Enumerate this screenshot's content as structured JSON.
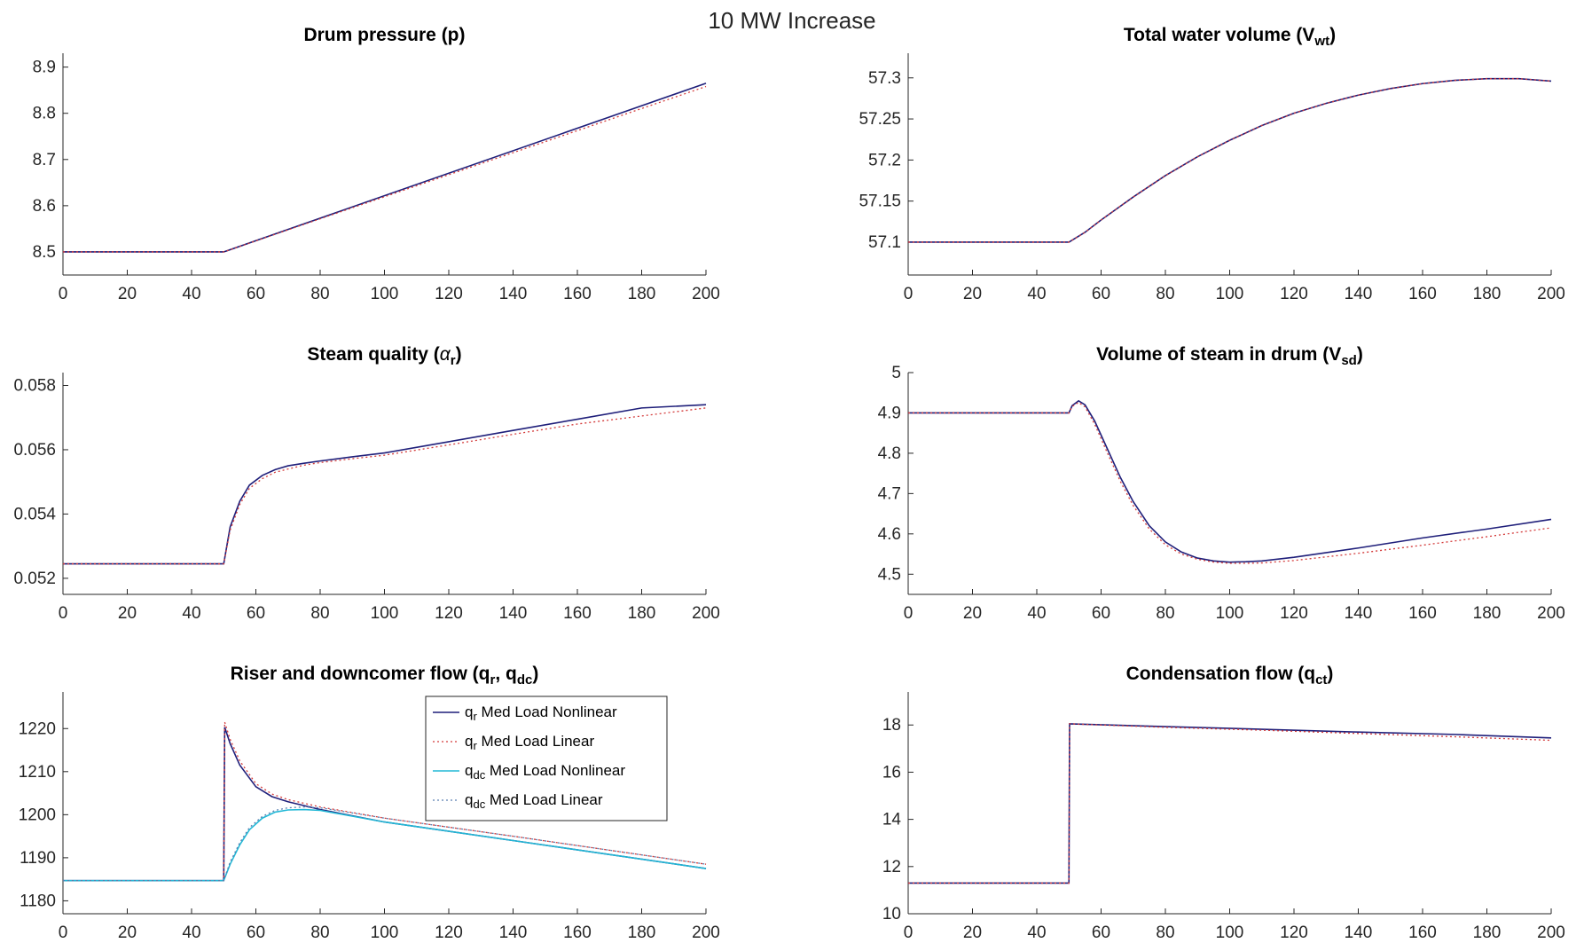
{
  "figure": {
    "super_title": "10 MW Increase"
  },
  "colors": {
    "nonlinear": "#1f1f7a",
    "linear": "#d43b3b",
    "dc_nonlinear": "#22b8d6",
    "dc_linear": "#5a7fb0"
  },
  "chart_data": [
    {
      "type": "line",
      "title": "Drum pressure (p)",
      "title_parts": {
        "main": "Drum pressure (p)",
        "sub": "",
        "end": ""
      },
      "xlim": [
        0,
        200
      ],
      "ylim": [
        8.45,
        8.93
      ],
      "xticks": [
        0,
        20,
        40,
        60,
        80,
        100,
        120,
        140,
        160,
        180,
        200
      ],
      "yticks": [
        8.5,
        8.6,
        8.7,
        8.8,
        8.9
      ],
      "yticklabels": [
        "8.5",
        "8.6",
        "8.7",
        "8.8",
        "8.9"
      ],
      "series": [
        {
          "style": "nonlinear",
          "x": [
            0,
            50,
            200
          ],
          "y": [
            8.5,
            8.5,
            8.865
          ]
        },
        {
          "style": "linear",
          "x": [
            0,
            50,
            200
          ],
          "y": [
            8.5,
            8.5,
            8.858
          ]
        }
      ]
    },
    {
      "type": "line",
      "title": "Total water volume (Vwt)",
      "title_parts": {
        "main": "Total water volume (V",
        "sub": "wt",
        "end": ")"
      },
      "xlim": [
        0,
        200
      ],
      "ylim": [
        57.06,
        57.33
      ],
      "xticks": [
        0,
        20,
        40,
        60,
        80,
        100,
        120,
        140,
        160,
        180,
        200
      ],
      "yticks": [
        57.1,
        57.15,
        57.2,
        57.25,
        57.3
      ],
      "yticklabels": [
        "57.1",
        "57.15",
        "57.2",
        "57.25",
        "57.3"
      ],
      "series": [
        {
          "style": "nonlinear",
          "x": [
            0,
            50,
            55,
            60,
            70,
            80,
            90,
            100,
            110,
            120,
            130,
            140,
            150,
            160,
            170,
            180,
            190,
            200
          ],
          "y": [
            57.1,
            57.1,
            57.112,
            57.127,
            57.155,
            57.181,
            57.204,
            57.224,
            57.242,
            57.257,
            57.269,
            57.279,
            57.287,
            57.293,
            57.297,
            57.299,
            57.299,
            57.296
          ]
        },
        {
          "style": "linear",
          "x": [
            0,
            50,
            55,
            60,
            70,
            80,
            90,
            100,
            110,
            120,
            130,
            140,
            150,
            160,
            170,
            180,
            190,
            200
          ],
          "y": [
            57.1,
            57.1,
            57.112,
            57.127,
            57.155,
            57.181,
            57.204,
            57.224,
            57.242,
            57.257,
            57.269,
            57.279,
            57.287,
            57.293,
            57.297,
            57.299,
            57.299,
            57.296
          ]
        }
      ]
    },
    {
      "type": "line",
      "title": "Steam quality (αr)",
      "title_parts": {
        "main": "Steam quality (",
        "greek": "α",
        "sub": "r",
        "end": ")"
      },
      "xlim": [
        0,
        200
      ],
      "ylim": [
        0.0515,
        0.0584
      ],
      "xticks": [
        0,
        20,
        40,
        60,
        80,
        100,
        120,
        140,
        160,
        180,
        200
      ],
      "yticks": [
        0.052,
        0.054,
        0.056,
        0.058
      ],
      "yticklabels": [
        "0.052",
        "0.054",
        "0.056",
        "0.058"
      ],
      "series": [
        {
          "style": "nonlinear",
          "x": [
            0,
            50,
            52,
            55,
            58,
            62,
            66,
            70,
            75,
            80,
            90,
            100,
            120,
            140,
            160,
            180,
            200
          ],
          "y": [
            0.05245,
            0.05245,
            0.0536,
            0.0544,
            0.0549,
            0.0552,
            0.05538,
            0.0555,
            0.05558,
            0.05565,
            0.05578,
            0.0559,
            0.05625,
            0.0566,
            0.05695,
            0.0573,
            0.0574
          ]
        },
        {
          "style": "linear",
          "x": [
            0,
            50,
            52,
            55,
            58,
            62,
            66,
            70,
            75,
            80,
            90,
            100,
            120,
            140,
            160,
            180,
            200
          ],
          "y": [
            0.05245,
            0.05245,
            0.0535,
            0.0543,
            0.0548,
            0.0551,
            0.0553,
            0.0554,
            0.05552,
            0.0556,
            0.05572,
            0.05583,
            0.05615,
            0.05648,
            0.0568,
            0.05705,
            0.0573
          ]
        }
      ]
    },
    {
      "type": "line",
      "title": "Volume of steam in drum (Vsd)",
      "title_parts": {
        "main": "Volume of steam in drum (V",
        "sub": "sd",
        "end": ")"
      },
      "xlim": [
        0,
        200
      ],
      "ylim": [
        4.45,
        5.0
      ],
      "xticks": [
        0,
        20,
        40,
        60,
        80,
        100,
        120,
        140,
        160,
        180,
        200
      ],
      "yticks": [
        4.5,
        4.6,
        4.7,
        4.8,
        4.9,
        5
      ],
      "yticklabels": [
        "4.5",
        "4.6",
        "4.7",
        "4.8",
        "4.9",
        "5"
      ],
      "series": [
        {
          "style": "nonlinear",
          "x": [
            0,
            50,
            51,
            53,
            55,
            58,
            62,
            66,
            70,
            75,
            80,
            85,
            90,
            95,
            100,
            105,
            110,
            120,
            140,
            160,
            180,
            200
          ],
          "y": [
            4.9,
            4.9,
            4.918,
            4.93,
            4.92,
            4.88,
            4.81,
            4.74,
            4.68,
            4.62,
            4.58,
            4.555,
            4.54,
            4.533,
            4.53,
            4.531,
            4.533,
            4.542,
            4.565,
            4.59,
            4.612,
            4.636
          ]
        },
        {
          "style": "linear",
          "x": [
            0,
            50,
            51,
            53,
            55,
            58,
            62,
            66,
            70,
            75,
            80,
            85,
            90,
            95,
            100,
            105,
            110,
            120,
            140,
            160,
            180,
            200
          ],
          "y": [
            4.9,
            4.9,
            4.916,
            4.926,
            4.915,
            4.872,
            4.8,
            4.73,
            4.67,
            4.612,
            4.573,
            4.55,
            4.537,
            4.53,
            4.527,
            4.527,
            4.528,
            4.534,
            4.552,
            4.572,
            4.593,
            4.615
          ]
        }
      ]
    },
    {
      "type": "line",
      "title": "Riser and downcomer flow (qr, qdc)",
      "title_parts": {
        "main": "Riser and downcomer flow (q",
        "sub": "r",
        "mid": ", q",
        "sub2": "dc",
        "end": ")"
      },
      "xlim": [
        0,
        200
      ],
      "ylim": [
        1177,
        1228.5
      ],
      "xticks": [
        0,
        20,
        40,
        60,
        80,
        100,
        120,
        140,
        160,
        180,
        200
      ],
      "yticks": [
        1180,
        1190,
        1200,
        1210,
        1220
      ],
      "yticklabels": [
        "1180",
        "1190",
        "1200",
        "1210",
        "1220"
      ],
      "legend": {
        "placement": "top-right",
        "entries": [
          {
            "style": "nonlinear",
            "sym": "q",
            "sub": "r",
            "text": " Med Load Nonlinear"
          },
          {
            "style": "linear",
            "sym": "q",
            "sub": "r",
            "text": " Med Load Linear"
          },
          {
            "style": "dc_nonlinear",
            "sym": "q",
            "sub": "dc",
            "text": " Med Load Nonlinear"
          },
          {
            "style": "dc_linear",
            "sym": "q",
            "sub": "dc",
            "text": " Med Load Linear"
          }
        ]
      },
      "series": [
        {
          "style": "nonlinear",
          "x": [
            0,
            50,
            50.3,
            52,
            55,
            60,
            65,
            70,
            80,
            100,
            140,
            200
          ],
          "y": [
            1184.7,
            1184.7,
            1220.3,
            1216.5,
            1211.5,
            1206.5,
            1204.2,
            1203,
            1201.2,
            1198.3,
            1194,
            1187.5
          ]
        },
        {
          "style": "linear",
          "x": [
            0,
            50,
            50.3,
            52,
            55,
            60,
            65,
            70,
            80,
            100,
            140,
            200
          ],
          "y": [
            1184.7,
            1184.7,
            1221.5,
            1217.5,
            1212.5,
            1207.2,
            1204.8,
            1203.5,
            1201.8,
            1199.2,
            1195,
            1188.5
          ]
        },
        {
          "style": "dc_nonlinear",
          "x": [
            0,
            50,
            52,
            55,
            58,
            62,
            66,
            70,
            75,
            80,
            100,
            140,
            200
          ],
          "y": [
            1184.7,
            1184.7,
            1188.5,
            1193,
            1196.5,
            1199.2,
            1200.6,
            1201.1,
            1201.2,
            1201,
            1198.3,
            1194,
            1187.5
          ]
        },
        {
          "style": "dc_linear",
          "x": [
            0,
            50,
            52,
            55,
            58,
            62,
            66,
            70,
            75,
            80,
            100,
            140,
            200
          ],
          "y": [
            1184.7,
            1184.7,
            1189,
            1193.5,
            1197,
            1199.6,
            1201,
            1201.6,
            1201.8,
            1201.6,
            1199.2,
            1195,
            1188.5
          ]
        }
      ]
    },
    {
      "type": "line",
      "title": "Condensation flow (qct)",
      "title_parts": {
        "main": "Condensation flow (q",
        "sub": "ct",
        "end": ")"
      },
      "xlim": [
        0,
        200
      ],
      "ylim": [
        10,
        19.4
      ],
      "xticks": [
        0,
        20,
        40,
        60,
        80,
        100,
        120,
        140,
        160,
        180,
        200
      ],
      "yticks": [
        10,
        12,
        14,
        16,
        18
      ],
      "yticklabels": [
        "10",
        "12",
        "14",
        "16",
        "18"
      ],
      "series": [
        {
          "style": "nonlinear",
          "x": [
            0,
            50,
            50.2,
            80,
            110,
            140,
            170,
            200
          ],
          "y": [
            11.3,
            11.3,
            18.05,
            17.93,
            17.82,
            17.7,
            17.6,
            17.45
          ]
        },
        {
          "style": "linear",
          "x": [
            0,
            50,
            50.2,
            80,
            110,
            140,
            170,
            200
          ],
          "y": [
            11.3,
            11.3,
            18.05,
            17.9,
            17.78,
            17.64,
            17.5,
            17.35
          ]
        }
      ]
    }
  ]
}
